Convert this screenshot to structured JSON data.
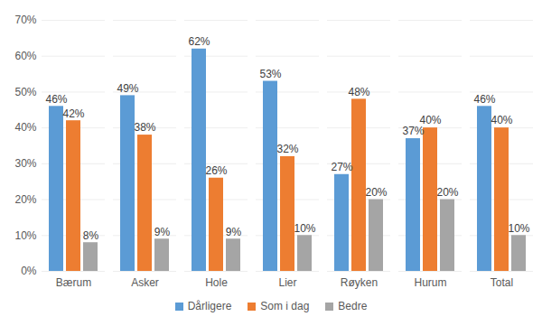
{
  "chart_data": {
    "type": "bar",
    "categories": [
      "Bærum",
      "Asker",
      "Hole",
      "Lier",
      "Røyken",
      "Hurum",
      "Total"
    ],
    "series": [
      {
        "name": "Dårligere",
        "color": "#5b9bd5",
        "values": [
          46,
          49,
          62,
          53,
          27,
          37,
          46
        ],
        "value_labels": [
          "46%",
          "49%",
          "62%",
          "53%",
          "27%",
          "37%",
          "46%"
        ]
      },
      {
        "name": "Som i dag",
        "color": "#ed7d31",
        "values": [
          42,
          38,
          26,
          32,
          48,
          40,
          40
        ],
        "value_labels": [
          "42%",
          "38%",
          "26%",
          "32%",
          "48%",
          "40%",
          "40%"
        ]
      },
      {
        "name": "Bedre",
        "color": "#a5a5a5",
        "values": [
          8,
          9,
          9,
          10,
          20,
          20,
          10
        ],
        "value_labels": [
          "8%",
          "9%",
          "9%",
          "10%",
          "20%",
          "20%",
          "10%"
        ]
      }
    ],
    "ylim": [
      0,
      70
    ],
    "yticks": [
      {
        "value": 0,
        "label": "0%"
      },
      {
        "value": 10,
        "label": "10%"
      },
      {
        "value": 20,
        "label": "20%"
      },
      {
        "value": 30,
        "label": "30%"
      },
      {
        "value": 40,
        "label": "40%"
      },
      {
        "value": 50,
        "label": "50%"
      },
      {
        "value": 60,
        "label": "60%"
      },
      {
        "value": 70,
        "label": "70%"
      }
    ],
    "grid": true,
    "data_labels": true,
    "legend": "bottom"
  }
}
